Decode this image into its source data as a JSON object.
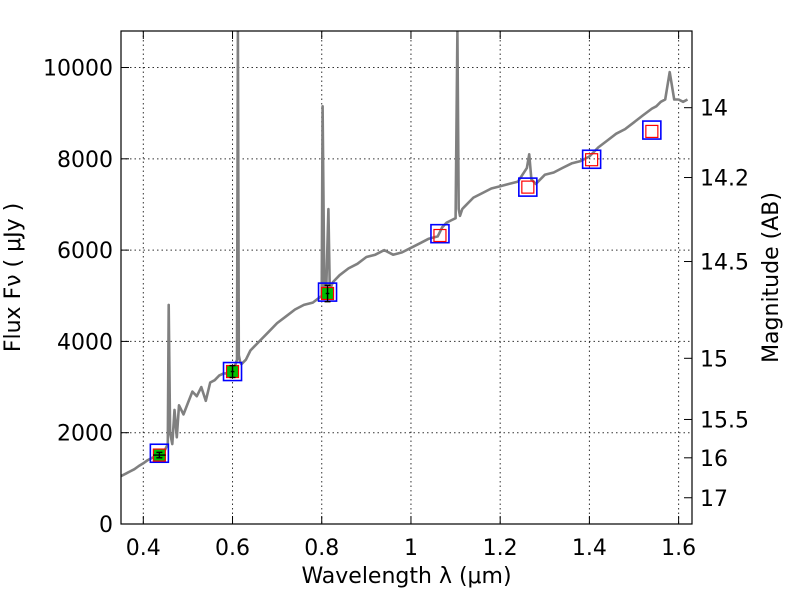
{
  "chart_data": {
    "type": "line",
    "xlabel": "Wavelength  λ (μm)",
    "ylabel": "Flux  Fν  ( μJy )",
    "y2label": "Magnitude (AB)",
    "xlim": [
      0.35,
      1.63
    ],
    "ylim": [
      0,
      10800
    ],
    "grid": true,
    "x_ticks": [
      0.4,
      0.6,
      0.8,
      1.0,
      1.2,
      1.4,
      1.6
    ],
    "x_tick_labels": [
      "0.4",
      "0.6",
      "0.8",
      "1",
      "1.2",
      "1.4",
      "1.6"
    ],
    "y_ticks": [
      0,
      2000,
      4000,
      6000,
      8000,
      10000
    ],
    "y_tick_labels": [
      "0",
      "2000",
      "4000",
      "6000",
      "8000",
      "10000"
    ],
    "y2_ticks": [
      {
        "label": "14",
        "flux": 9120
      },
      {
        "label": "14.2",
        "flux": 7590
      },
      {
        "label": "14.5",
        "flux": 5750
      },
      {
        "label": "15",
        "flux": 3630
      },
      {
        "label": "15.5",
        "flux": 2290
      },
      {
        "label": "16",
        "flux": 1450
      },
      {
        "label": "17",
        "flux": 575
      }
    ],
    "spectrum": {
      "color": "#808080",
      "x": [
        0.35,
        0.36,
        0.37,
        0.38,
        0.39,
        0.4,
        0.41,
        0.42,
        0.43,
        0.44,
        0.445,
        0.45,
        0.455,
        0.457,
        0.46,
        0.465,
        0.47,
        0.475,
        0.48,
        0.49,
        0.5,
        0.51,
        0.52,
        0.53,
        0.54,
        0.55,
        0.56,
        0.57,
        0.58,
        0.59,
        0.6,
        0.605,
        0.61,
        0.612,
        0.614,
        0.617,
        0.62,
        0.63,
        0.64,
        0.66,
        0.68,
        0.7,
        0.72,
        0.74,
        0.76,
        0.78,
        0.8,
        0.802,
        0.806,
        0.81,
        0.815,
        0.818,
        0.821,
        0.825,
        0.84,
        0.86,
        0.88,
        0.9,
        0.92,
        0.94,
        0.96,
        0.98,
        1.0,
        1.02,
        1.04,
        1.06,
        1.07,
        1.08,
        1.09,
        1.1,
        1.104,
        1.107,
        1.11,
        1.115,
        1.12,
        1.14,
        1.16,
        1.18,
        1.2,
        1.22,
        1.24,
        1.26,
        1.265,
        1.27,
        1.28,
        1.3,
        1.32,
        1.34,
        1.36,
        1.38,
        1.4,
        1.42,
        1.44,
        1.46,
        1.48,
        1.5,
        1.52,
        1.54,
        1.55,
        1.56,
        1.57,
        1.58,
        1.59,
        1.6,
        1.61,
        1.62
      ],
      "y": [
        1050,
        1100,
        1150,
        1200,
        1270,
        1330,
        1400,
        1450,
        1480,
        1500,
        1550,
        1650,
        1750,
        4800,
        2000,
        1750,
        2500,
        1900,
        2600,
        2400,
        2650,
        2900,
        2800,
        3000,
        2700,
        3100,
        3150,
        3250,
        3300,
        3300,
        3350,
        3450,
        3600,
        10800,
        3700,
        3550,
        3500,
        3600,
        3800,
        4000,
        4200,
        4400,
        4550,
        4700,
        4800,
        4850,
        5000,
        9150,
        5000,
        5100,
        6900,
        5100,
        5200,
        5300,
        5450,
        5600,
        5700,
        5850,
        5900,
        6000,
        5900,
        5950,
        6050,
        6150,
        6250,
        6300,
        6500,
        6600,
        6650,
        6700,
        10800,
        6900,
        6750,
        6900,
        6950,
        7150,
        7250,
        7350,
        7400,
        7450,
        7500,
        7800,
        8100,
        7550,
        7450,
        7650,
        7700,
        7800,
        7900,
        7950,
        8050,
        8250,
        8400,
        8550,
        8650,
        8800,
        8950,
        9100,
        9150,
        9250,
        9300,
        9900,
        9300,
        9300,
        9250,
        9300
      ]
    },
    "photometry": [
      {
        "x": 0.436,
        "y": 1510,
        "model": 1550,
        "xerr": 0.014,
        "yerr": 60,
        "filled": true
      },
      {
        "x": 0.6,
        "y": 3340,
        "model": 3340,
        "xerr": 0.004,
        "yerr": 130,
        "filled": true
      },
      {
        "x": 0.813,
        "y": 5050,
        "model": 5080,
        "xerr": 0.004,
        "yerr": 180,
        "filled": true
      },
      {
        "x": 1.065,
        "y": 6320,
        "model": 6360,
        "filled": false
      },
      {
        "x": 1.262,
        "y": 7380,
        "model": 7380,
        "filled": false
      },
      {
        "x": 1.405,
        "y": 7980,
        "model": 7990,
        "filled": false
      },
      {
        "x": 1.54,
        "y": 8600,
        "model": 8630,
        "filled": false
      }
    ],
    "colors": {
      "model_box": "#0000ff",
      "data_box": "#ff0000",
      "data_fill": "#00c000",
      "errorbar": "#000000"
    }
  }
}
